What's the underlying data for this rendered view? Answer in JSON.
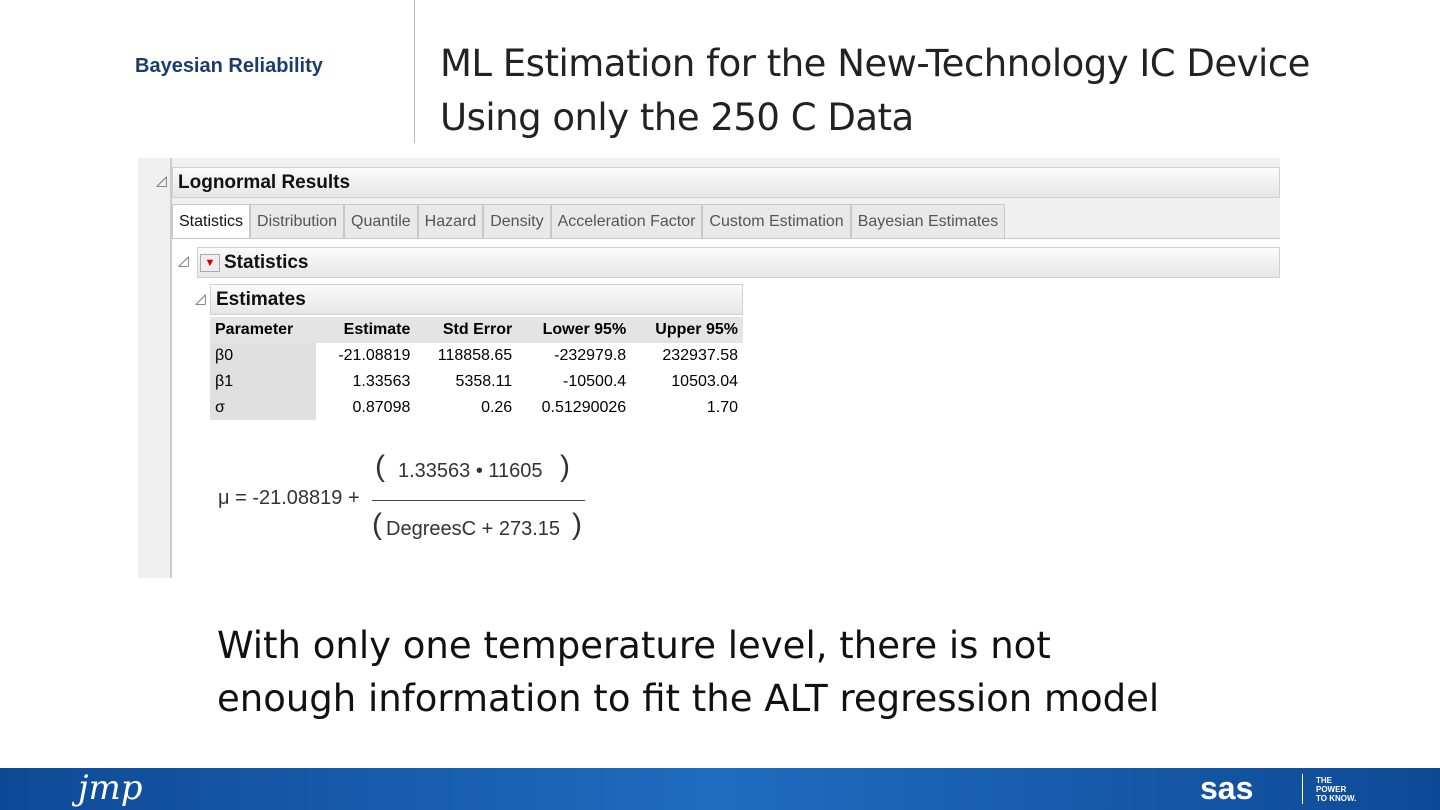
{
  "header": {
    "section": "Bayesian Reliability",
    "title": [
      "ML Estimation for the New-Technology IC Device",
      "Using only the 250 C Data"
    ]
  },
  "panel": {
    "title": "Lognormal Results",
    "tabs": [
      "Statistics",
      "Distribution",
      "Quantile",
      "Hazard",
      "Density",
      "Acceleration Factor",
      "Custom Estimation",
      "Bayesian Estimates"
    ],
    "outline": "Statistics",
    "estimates": {
      "title": "Estimates",
      "columns": [
        "Parameter",
        "Estimate",
        "Std Error",
        "Lower 95%",
        "Upper 95%"
      ],
      "rows": [
        [
          "β0",
          "-21.08819",
          "118858.65",
          "-232979.8",
          "232937.58"
        ],
        [
          "β1",
          "1.33563",
          "5358.11",
          "-10500.4",
          "10503.04"
        ],
        [
          "σ",
          "0.87098",
          "0.26",
          "0.51290026",
          "1.70"
        ]
      ]
    },
    "formula": {
      "lhs": "μ = -21.08819 +",
      "numerator": "1.33563 • 11605",
      "denominator": "DegreesC + 273.15"
    }
  },
  "body": [
    "With only one temperature level, there is not",
    "enough information to fit the ALT regression model"
  ],
  "footer": {
    "left_logo": "jmp",
    "right_logo": "sas",
    "tagline": [
      "THE",
      "POWER",
      "TO KNOW."
    ]
  }
}
